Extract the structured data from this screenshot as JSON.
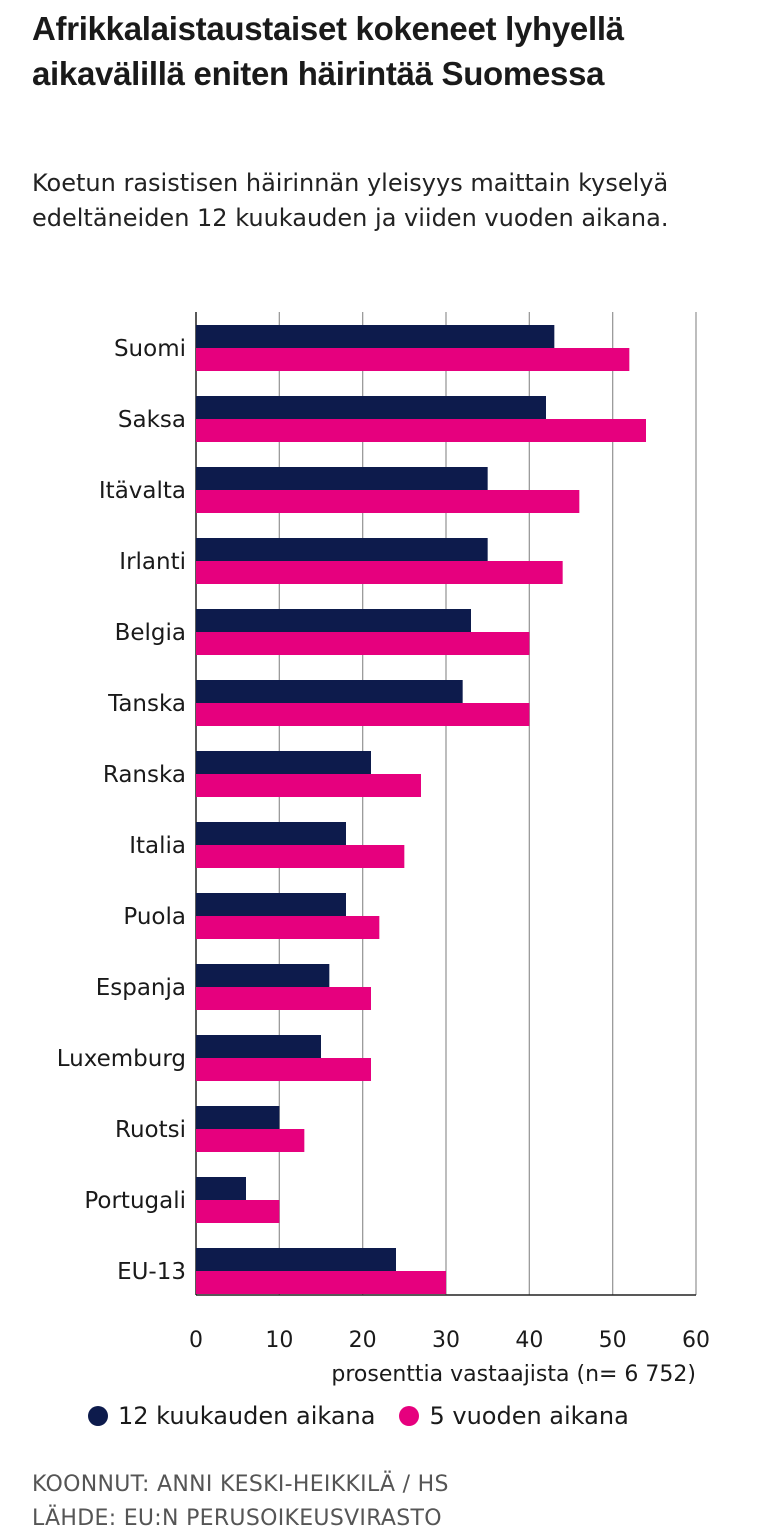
{
  "header": {
    "title": "Afrikkalaistaustaiset kokeneet lyhyellä aikavälillä eniten häirintää Suomessa",
    "subtitle": "Koetun rasistisen häirinnän yleisyys maittain kyselyä edeltäneiden 12 kuukauden ja viiden vuoden aikana."
  },
  "chart_data": {
    "type": "bar",
    "orientation": "horizontal",
    "categories": [
      "Suomi",
      "Saksa",
      "Itävalta",
      "Irlanti",
      "Belgia",
      "Tanska",
      "Ranska",
      "Italia",
      "Puola",
      "Espanja",
      "Luxemburg",
      "Ruotsi",
      "Portugali",
      "EU-13"
    ],
    "series": [
      {
        "name": "12 kuukauden aikana",
        "color": "#0d1b4c",
        "values": [
          43,
          42,
          35,
          35,
          33,
          32,
          21,
          18,
          18,
          16,
          15,
          10,
          6,
          24
        ]
      },
      {
        "name": "5 vuoden aikana",
        "color": "#e6007e",
        "values": [
          52,
          54,
          46,
          44,
          40,
          40,
          27,
          25,
          22,
          21,
          21,
          13,
          10,
          30
        ]
      }
    ],
    "xlim": [
      0,
      60
    ],
    "xticks": [
      0,
      10,
      20,
      30,
      40,
      50,
      60
    ],
    "xlabel": "prosenttia vastaajista (n= 6 752)",
    "grid": "vertical",
    "legend": "bottom"
  },
  "footer": {
    "credit": "KOONNUT: ANNI KESKI-HEIKKILÄ / HS",
    "source": "LÄHDE: EU:N PERUSOIKEUSVIRASTO"
  }
}
